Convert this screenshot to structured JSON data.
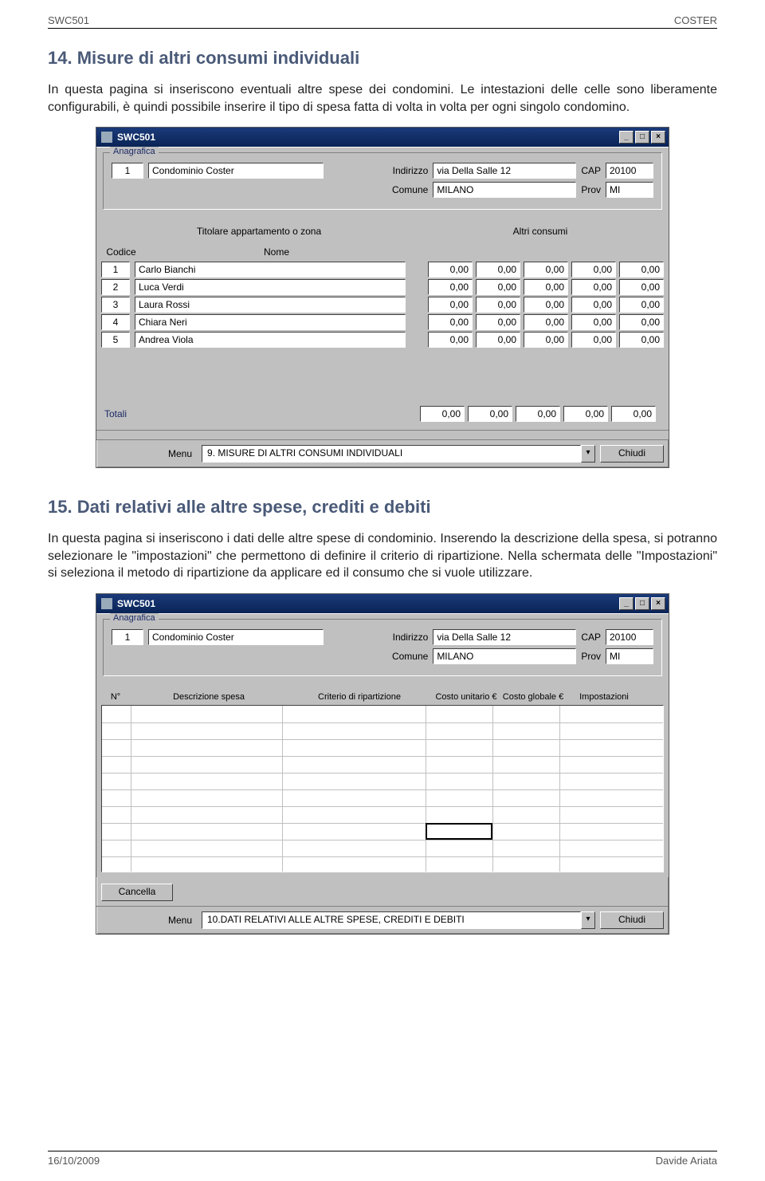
{
  "doc": {
    "header_left": "SWC501",
    "header_right": "COSTER",
    "footer_left": "16/10/2009",
    "footer_right": "Davide Ariata",
    "section14_title": "14. Misure di altri consumi individuali",
    "section14_para": "In questa pagina si inseriscono eventuali altre spese dei condomini. Le intestazioni delle celle sono liberamente configurabili, è quindi possibile inserire il tipo di spesa fatta di volta in volta per ogni singolo condomino.",
    "section15_title": "15. Dati relativi alle altre spese, crediti e debiti",
    "section15_para": "In questa pagina si inseriscono i dati delle altre spese di condominio. Inserendo la descrizione della spesa, si potranno selezionare le \"impostazioni\" che permettono di definire il criterio di ripartizione. Nella schermata delle \"Impostazioni\" si seleziona il metodo di ripartizione da applicare ed il consumo che si vuole utilizzare."
  },
  "win1": {
    "title": "SWC501",
    "anagrafica_label": "Anagrafica",
    "id_value": "1",
    "condominio_value": "Condominio Coster",
    "indirizzo_label": "Indirizzo",
    "indirizzo_value": "via Della Salle 12",
    "cap_label": "CAP",
    "cap_value": "20100",
    "comune_label": "Comune",
    "comune_value": "MILANO",
    "prov_label": "Prov",
    "prov_value": "MI",
    "header_titolare": "Titolare appartamento o zona",
    "header_altri": "Altri consumi",
    "col_codice": "Codice",
    "col_nome": "Nome",
    "rows": [
      {
        "id": "1",
        "name": "Carlo Bianchi",
        "v": [
          "0,00",
          "0,00",
          "0,00",
          "0,00",
          "0,00"
        ]
      },
      {
        "id": "2",
        "name": "Luca Verdi",
        "v": [
          "0,00",
          "0,00",
          "0,00",
          "0,00",
          "0,00"
        ]
      },
      {
        "id": "3",
        "name": "Laura Rossi",
        "v": [
          "0,00",
          "0,00",
          "0,00",
          "0,00",
          "0,00"
        ]
      },
      {
        "id": "4",
        "name": "Chiara Neri",
        "v": [
          "0,00",
          "0,00",
          "0,00",
          "0,00",
          "0,00"
        ]
      },
      {
        "id": "5",
        "name": "Andrea Viola",
        "v": [
          "0,00",
          "0,00",
          "0,00",
          "0,00",
          "0,00"
        ]
      }
    ],
    "totali_label": "Totali",
    "totali": [
      "0,00",
      "0,00",
      "0,00",
      "0,00",
      "0,00"
    ],
    "menu_label": "Menu",
    "menu_value": "9. MISURE DI ALTRI CONSUMI INDIVIDUALI",
    "chiudi": "Chiudi"
  },
  "win2": {
    "title": "SWC501",
    "anagrafica_label": "Anagrafica",
    "id_value": "1",
    "condominio_value": "Condominio Coster",
    "indirizzo_label": "Indirizzo",
    "indirizzo_value": "via Della Salle 12",
    "cap_label": "CAP",
    "cap_value": "20100",
    "comune_label": "Comune",
    "comune_value": "MILANO",
    "prov_label": "Prov",
    "prov_value": "MI",
    "col_n": "N°",
    "col_descr": "Descrizione spesa",
    "col_criterio": "Criterio di ripartizione",
    "col_costo_unit": "Costo unitario €",
    "col_costo_glob": "Costo globale €",
    "col_impost": "Impostazioni",
    "cancella": "Cancella",
    "menu_label": "Menu",
    "menu_value": "10.DATI RELATIVI ALLE ALTRE SPESE, CREDITI E DEBITI",
    "chiudi": "Chiudi"
  }
}
